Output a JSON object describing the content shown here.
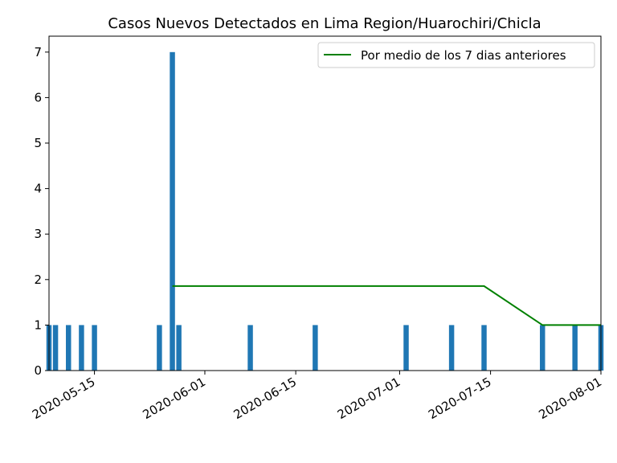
{
  "chart_data": {
    "type": "bar",
    "title": "Casos Nuevos Detectados en Lima Region/Huarochiri/Chicla",
    "xlabel": "",
    "ylabel": "",
    "ylim": [
      0,
      7.35
    ],
    "xlim": [
      "2020-05-08",
      "2020-08-01"
    ],
    "yticks": [
      0,
      1,
      2,
      3,
      4,
      5,
      6,
      7
    ],
    "xticks": [
      "2020-05-15",
      "2020-06-01",
      "2020-06-15",
      "2020-07-01",
      "2020-07-15",
      "2020-08-01"
    ],
    "bar_color": "#1f77b4",
    "line_color": "#008000",
    "legend_position": "top-right",
    "series": [
      {
        "type": "bar",
        "x": [
          "2020-05-08",
          "2020-05-09",
          "2020-05-11",
          "2020-05-13",
          "2020-05-15",
          "2020-05-25",
          "2020-05-27",
          "2020-05-28",
          "2020-06-08",
          "2020-06-18",
          "2020-07-02",
          "2020-07-09",
          "2020-07-14",
          "2020-07-23",
          "2020-07-28",
          "2020-08-01"
        ],
        "values": [
          1,
          1,
          1,
          1,
          1,
          1,
          7,
          1,
          1,
          1,
          1,
          1,
          1,
          1,
          1,
          1
        ]
      },
      {
        "type": "line",
        "name": "Por medio de los 7 dias anteriores",
        "x": [
          "2020-05-27",
          "2020-07-14",
          "2020-07-23",
          "2020-08-01"
        ],
        "values": [
          1.857,
          1.857,
          1.0,
          1.0
        ]
      }
    ]
  }
}
